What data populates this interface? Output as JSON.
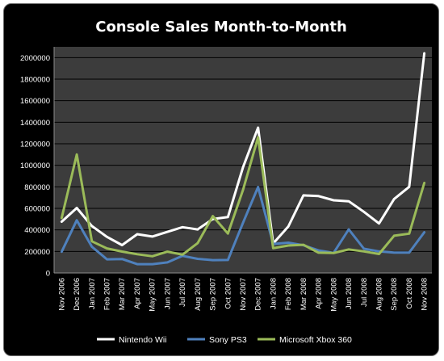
{
  "chart_data": {
    "type": "line",
    "title": "Console Sales Month-to-Month",
    "xlabel": "",
    "ylabel": "",
    "ylim": [
      0,
      2100000
    ],
    "yticks": [
      0,
      200000,
      400000,
      600000,
      800000,
      1000000,
      1200000,
      1400000,
      1600000,
      1800000,
      2000000
    ],
    "grid": true,
    "legend_position": "bottom",
    "categories": [
      "Nov 2006",
      "Dec 2006",
      "Jan 2007",
      "Feb 2007",
      "Mar 2007",
      "Apr 2007",
      "May 2007",
      "Jun 2007",
      "Jul 2007",
      "Aug 2007",
      "Sep 2007",
      "Oct 2007",
      "Nov 2007",
      "Dec 2007",
      "Jan 2008",
      "Feb 2008",
      "Mar 2008",
      "Apr 2008",
      "May 2008",
      "Jun 2008",
      "Jul 2008",
      "Aug 2008",
      "Sep 2008",
      "Oct 2008",
      "Nov 2008"
    ],
    "series": [
      {
        "name": "Nintendo Wii",
        "color": "#ffffff",
        "values": [
          476000,
          604000,
          436000,
          335000,
          259000,
          360000,
          338000,
          382000,
          425000,
          404000,
          501000,
          519000,
          981000,
          1350000,
          274000,
          432000,
          721000,
          714000,
          675000,
          666000,
          568000,
          460000,
          687000,
          800000,
          2040000
        ]
      },
      {
        "name": "Sony PS3",
        "color": "#4f81bd",
        "values": [
          197000,
          490000,
          244000,
          127000,
          130000,
          82000,
          82000,
          98000,
          159000,
          131000,
          119000,
          121000,
          466000,
          798000,
          269000,
          281000,
          257000,
          209000,
          187000,
          405000,
          225000,
          200000,
          190000,
          190000,
          378000
        ]
      },
      {
        "name": "Microsoft Xbox 360",
        "color": "#9bbb59",
        "values": [
          511000,
          1100000,
          294000,
          228000,
          199000,
          174000,
          155000,
          198000,
          170000,
          277000,
          528000,
          366000,
          770000,
          1260000,
          230000,
          255000,
          262000,
          188000,
          185000,
          219000,
          200000,
          176000,
          346000,
          365000,
          836000
        ]
      }
    ]
  }
}
